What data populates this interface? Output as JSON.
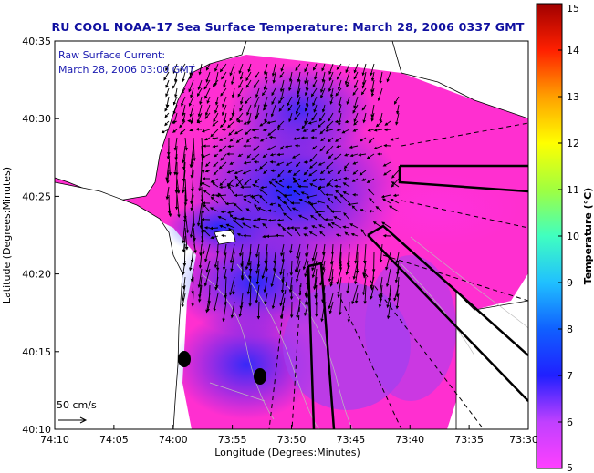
{
  "title": "RU COOL  NOAA-17  Sea Surface Temperature:  March 28, 2006 0337 GMT",
  "overlay": {
    "line1": "Raw Surface Current:",
    "line2": "March 28, 2006 03:00 GMT"
  },
  "scale_label": "50 cm/s",
  "x_axis": {
    "label": "Longitude (Degrees:Minutes)",
    "ticks": [
      "74:10",
      "74:05",
      "74:00",
      "73:55",
      "73:50",
      "73:45",
      "73:40",
      "73:35",
      "73:30"
    ]
  },
  "y_axis": {
    "label": "Latitude (Degrees:Minutes)",
    "ticks": [
      "40:35",
      "40:30",
      "40:25",
      "40:20",
      "40:15",
      "40:10"
    ]
  },
  "colorbar": {
    "label": "Temperature (°C)",
    "ticks": [
      "15",
      "14",
      "13",
      "12",
      "11",
      "10",
      "9",
      "8",
      "7",
      "6",
      "5"
    ],
    "min": 5,
    "max": 15,
    "colors": [
      "#ff40ff",
      "#c040ff",
      "#2020ff",
      "#1060ff",
      "#20c0ff",
      "#40ffc0",
      "#a0ff40",
      "#ffff00",
      "#ffa000",
      "#ff2000",
      "#a00000"
    ]
  },
  "colors": {
    "sea_warm": "#ff2fd0",
    "sea_mid": "#a040f0",
    "sea_cool": "#1a2cff",
    "land": "#ffffff",
    "vectors": "#000000",
    "title": "#1010a0"
  }
}
